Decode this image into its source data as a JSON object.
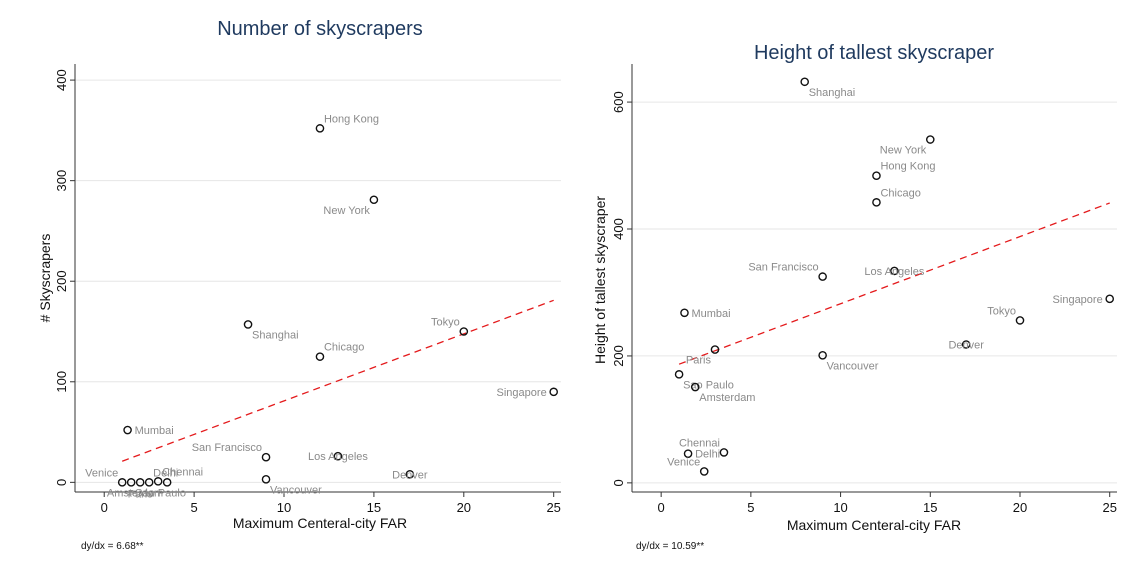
{
  "chart_data": [
    {
      "type": "scatter",
      "title": "Number of skyscrapers",
      "xlabel": "Maximum Centeral-city FAR",
      "ylabel": "# Skyscrapers",
      "xlim": [
        0,
        25
      ],
      "ylim": [
        0,
        400
      ],
      "xticks": [
        "0",
        "5",
        "10",
        "15",
        "20",
        "25"
      ],
      "yticks": [
        "0",
        "100",
        "200",
        "300",
        "400"
      ],
      "grid": true,
      "note": "dy/dx = 6.68**",
      "fit_line": {
        "style": "dashed",
        "color": "#e41a1c",
        "x": [
          1,
          25
        ],
        "y": [
          21,
          181
        ]
      },
      "points": [
        {
          "label": "Hong Kong",
          "x": 12,
          "y": 352,
          "pos": "ne"
        },
        {
          "label": "New York",
          "x": 15,
          "y": 281,
          "pos": "sw"
        },
        {
          "label": "Shanghai",
          "x": 8,
          "y": 157,
          "pos": "se"
        },
        {
          "label": "Tokyo",
          "x": 20,
          "y": 150,
          "pos": "nw"
        },
        {
          "label": "Chicago",
          "x": 12,
          "y": 125,
          "pos": "ne"
        },
        {
          "label": "Singapore",
          "x": 25,
          "y": 90,
          "pos": "w"
        },
        {
          "label": "Mumbai",
          "x": 1.3,
          "y": 52,
          "pos": "e"
        },
        {
          "label": "San Francisco",
          "x": 9,
          "y": 25,
          "pos": "nw"
        },
        {
          "label": "Los Angeles",
          "x": 13,
          "y": 26,
          "pos": "c"
        },
        {
          "label": "Denver",
          "x": 17,
          "y": 8,
          "pos": "c"
        },
        {
          "label": "Vancouver",
          "x": 9,
          "y": 3,
          "pos": "se"
        },
        {
          "label": "Venice",
          "x": 1,
          "y": 0,
          "pos": "nw"
        },
        {
          "label": "Chennai",
          "x": 3,
          "y": 1,
          "pos": "ne"
        },
        {
          "label": "Delhi",
          "x": 2.5,
          "y": 0,
          "pos": "ne"
        },
        {
          "label": "Paris",
          "x": 2,
          "y": 0,
          "pos": "s"
        },
        {
          "label": "Amsterdam",
          "x": 3.5,
          "y": 0,
          "pos": "sw"
        },
        {
          "label": "Sao Paulo",
          "x": 1.5,
          "y": 0,
          "pos": "se"
        }
      ]
    },
    {
      "type": "scatter",
      "title": "Height of tallest skyscraper",
      "xlabel": "Maximum Centeral-city FAR",
      "ylabel": "Height of tallest skyscraper",
      "xlim": [
        0,
        25
      ],
      "ylim": [
        0,
        600
      ],
      "xticks": [
        "0",
        "5",
        "10",
        "15",
        "20",
        "25"
      ],
      "yticks": [
        "0",
        "200",
        "400",
        "600"
      ],
      "grid": true,
      "note": "dy/dx = 10.59**",
      "fit_line": {
        "style": "dashed",
        "color": "#e41a1c",
        "x": [
          1,
          25
        ],
        "y": [
          187,
          441
        ]
      },
      "points": [
        {
          "label": "Shanghai",
          "x": 8,
          "y": 632,
          "pos": "se"
        },
        {
          "label": "New York",
          "x": 15,
          "y": 541,
          "pos": "sw"
        },
        {
          "label": "Hong Kong",
          "x": 12,
          "y": 484,
          "pos": "ne"
        },
        {
          "label": "Chicago",
          "x": 12,
          "y": 442,
          "pos": "ne"
        },
        {
          "label": "San Francisco",
          "x": 9,
          "y": 325,
          "pos": "nw"
        },
        {
          "label": "Los Angeles",
          "x": 13,
          "y": 334,
          "pos": "c"
        },
        {
          "label": "Singapore",
          "x": 25,
          "y": 290,
          "pos": "w"
        },
        {
          "label": "Mumbai",
          "x": 1.3,
          "y": 268,
          "pos": "e"
        },
        {
          "label": "Tokyo",
          "x": 20,
          "y": 256,
          "pos": "nw"
        },
        {
          "label": "Denver",
          "x": 17,
          "y": 218,
          "pos": "c"
        },
        {
          "label": "Paris",
          "x": 3,
          "y": 210,
          "pos": "sw"
        },
        {
          "label": "Vancouver",
          "x": 9,
          "y": 201,
          "pos": "se"
        },
        {
          "label": "Sao Paulo",
          "x": 1,
          "y": 171,
          "pos": "se"
        },
        {
          "label": "Amsterdam",
          "x": 1.9,
          "y": 151,
          "pos": "se"
        },
        {
          "label": "Chennai",
          "x": 3.5,
          "y": 48,
          "pos": "nw"
        },
        {
          "label": "Delhi",
          "x": 1.5,
          "y": 46,
          "pos": "e"
        },
        {
          "label": "Venice",
          "x": 2.4,
          "y": 18,
          "pos": "nw"
        }
      ]
    }
  ]
}
